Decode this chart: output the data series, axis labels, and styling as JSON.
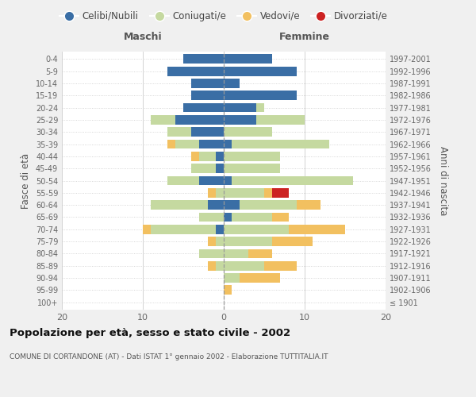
{
  "age_groups": [
    "100+",
    "95-99",
    "90-94",
    "85-89",
    "80-84",
    "75-79",
    "70-74",
    "65-69",
    "60-64",
    "55-59",
    "50-54",
    "45-49",
    "40-44",
    "35-39",
    "30-34",
    "25-29",
    "20-24",
    "15-19",
    "10-14",
    "5-9",
    "0-4"
  ],
  "birth_years": [
    "≤ 1901",
    "1902-1906",
    "1907-1911",
    "1912-1916",
    "1917-1921",
    "1922-1926",
    "1927-1931",
    "1932-1936",
    "1937-1941",
    "1942-1946",
    "1947-1951",
    "1952-1956",
    "1957-1961",
    "1962-1966",
    "1967-1971",
    "1972-1976",
    "1977-1981",
    "1982-1986",
    "1987-1991",
    "1992-1996",
    "1997-2001"
  ],
  "maschi": {
    "celibi": [
      0,
      0,
      0,
      0,
      0,
      0,
      1,
      0,
      2,
      0,
      3,
      1,
      1,
      3,
      4,
      6,
      5,
      4,
      4,
      7,
      5
    ],
    "coniugati": [
      0,
      0,
      0,
      1,
      3,
      1,
      8,
      3,
      7,
      1,
      4,
      3,
      2,
      3,
      3,
      3,
      0,
      0,
      0,
      0,
      0
    ],
    "vedovi": [
      0,
      0,
      0,
      1,
      0,
      1,
      1,
      0,
      0,
      1,
      0,
      0,
      1,
      1,
      0,
      0,
      0,
      0,
      0,
      0,
      0
    ],
    "divorziati": [
      0,
      0,
      0,
      0,
      0,
      0,
      0,
      0,
      0,
      0,
      0,
      0,
      0,
      0,
      0,
      0,
      0,
      0,
      0,
      0,
      0
    ]
  },
  "femmine": {
    "nubili": [
      0,
      0,
      0,
      0,
      0,
      0,
      0,
      1,
      2,
      0,
      1,
      0,
      0,
      1,
      0,
      4,
      4,
      9,
      2,
      9,
      6
    ],
    "coniugate": [
      0,
      0,
      2,
      5,
      3,
      6,
      8,
      5,
      7,
      5,
      15,
      7,
      7,
      12,
      6,
      6,
      1,
      0,
      0,
      0,
      0
    ],
    "vedove": [
      0,
      1,
      5,
      4,
      3,
      5,
      7,
      2,
      3,
      1,
      0,
      0,
      0,
      0,
      0,
      0,
      0,
      0,
      0,
      0,
      0
    ],
    "divorziate": [
      0,
      0,
      0,
      0,
      0,
      0,
      0,
      0,
      0,
      2,
      0,
      0,
      0,
      0,
      0,
      0,
      0,
      0,
      0,
      0,
      0
    ]
  },
  "color_celibi": "#3a6ea5",
  "color_coniugati": "#c5d9a0",
  "color_vedovi": "#f2c060",
  "color_divorziati": "#cc2222",
  "title": "Popolazione per età, sesso e stato civile - 2002",
  "subtitle": "COMUNE DI CORTANDONE (AT) - Dati ISTAT 1° gennaio 2002 - Elaborazione TUTTITALIA.IT",
  "ylabel_left": "Fasce di età",
  "ylabel_right": "Anni di nascita",
  "xlabel_left": "Maschi",
  "xlabel_right": "Femmine",
  "xlim": 20,
  "bg_color": "#f0f0f0",
  "plot_bg": "#ffffff"
}
